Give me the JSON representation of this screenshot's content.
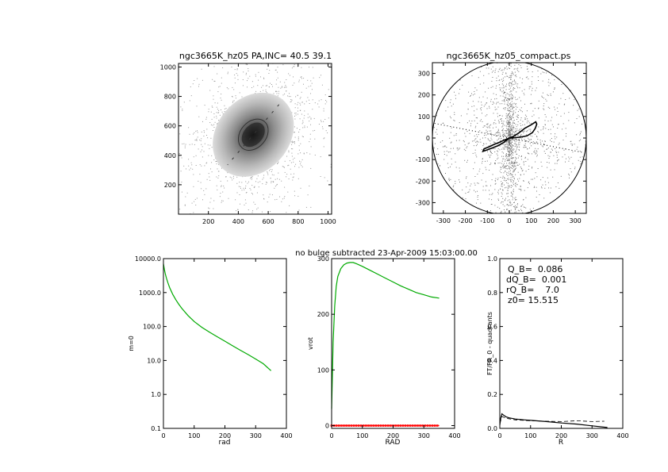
{
  "suptitle": "no bulge subtracted   23-Apr-2009 15:03:00.00",
  "chart_data": [
    {
      "id": "p1",
      "type": "image",
      "title": "ngc3665K_hz05 PA,INC= 40.5 39.1",
      "xlim": [
        0,
        1024
      ],
      "ylim": [
        0,
        1024
      ],
      "xticks": [
        200,
        400,
        600,
        800,
        1000
      ],
      "yticks": [
        200,
        400,
        600,
        800,
        1000
      ],
      "xticklabels": [
        "200",
        "400",
        "600",
        "800",
        "1000"
      ],
      "yticklabels": [
        "200",
        "400",
        "600",
        "800",
        "1000"
      ],
      "center": [
        500,
        540
      ],
      "ellipse": {
        "a": 340,
        "b": 270,
        "pa_deg": 40.5
      }
    },
    {
      "id": "p2",
      "type": "scatter",
      "title": "ngc3665K_hz05_compact.ps",
      "xlim": [
        -350,
        350
      ],
      "ylim": [
        -350,
        350
      ],
      "xticks": [
        -300,
        -200,
        -100,
        0,
        100,
        200,
        300
      ],
      "yticks": [
        -300,
        -200,
        -100,
        0,
        100,
        200,
        300
      ],
      "xticklabels": [
        "-300",
        "-200",
        "-100",
        "0",
        "100",
        "200",
        "300"
      ],
      "yticklabels": [
        "-300",
        "-200",
        "-100",
        "0",
        "100",
        "200",
        "300"
      ],
      "circle_radius": 350,
      "lobe": [
        [
          0,
          0
        ],
        [
          20,
          8
        ],
        [
          45,
          25
        ],
        [
          70,
          45
        ],
        [
          100,
          62
        ],
        [
          120,
          75
        ],
        [
          125,
          65
        ],
        [
          118,
          45
        ],
        [
          105,
          25
        ],
        [
          80,
          10
        ],
        [
          55,
          5
        ],
        [
          30,
          2
        ],
        [
          0,
          0
        ],
        [
          -20,
          -8
        ],
        [
          -45,
          -20
        ],
        [
          -70,
          -30
        ],
        [
          -95,
          -42
        ],
        [
          -115,
          -50
        ],
        [
          -120,
          -62
        ],
        [
          -100,
          -55
        ],
        [
          -75,
          -45
        ],
        [
          -50,
          -35
        ],
        [
          -25,
          -20
        ],
        [
          0,
          0
        ]
      ]
    },
    {
      "id": "p3",
      "type": "line",
      "ylog": true,
      "xlabel": "rad",
      "ylabel": "m=0",
      "xlim": [
        0,
        400
      ],
      "ylim": [
        0.1,
        10000
      ],
      "xticks": [
        0,
        100,
        200,
        300,
        400
      ],
      "yticks": [
        0.1,
        1,
        10,
        100,
        1000,
        10000
      ],
      "xticklabels": [
        "0",
        "100",
        "200",
        "300",
        "400"
      ],
      "yticklabels": [
        "0.1",
        "1.0",
        "10.0",
        "100.0",
        "1000.0",
        "10000.0"
      ],
      "series": [
        {
          "color": "#00aa00",
          "x": [
            0,
            3,
            6,
            10,
            15,
            20,
            30,
            40,
            50,
            60,
            80,
            100,
            125,
            150,
            175,
            200,
            225,
            250,
            275,
            300,
            325,
            350
          ],
          "y": [
            7000,
            4800,
            3600,
            2600,
            1900,
            1400,
            900,
            620,
            450,
            340,
            210,
            140,
            95,
            68,
            50,
            37,
            27,
            20,
            15,
            11,
            8,
            5
          ]
        }
      ]
    },
    {
      "id": "p4",
      "type": "line",
      "xlabel": "RAD",
      "ylabel": "vrot",
      "xlim": [
        0,
        400
      ],
      "ylim": [
        -5,
        300
      ],
      "xticks": [
        0,
        100,
        200,
        300,
        400
      ],
      "yticks": [
        0,
        100,
        200,
        300
      ],
      "xticklabels": [
        "0",
        "100",
        "200",
        "300",
        "400"
      ],
      "yticklabels": [
        "0",
        "100",
        "200",
        "300"
      ],
      "series": [
        {
          "color": "#00aa00",
          "x": [
            0,
            2,
            5,
            10,
            15,
            20,
            30,
            40,
            50,
            60,
            70,
            80,
            100,
            125,
            150,
            175,
            200,
            225,
            250,
            275,
            300,
            325,
            350
          ],
          "y": [
            30,
            80,
            150,
            215,
            250,
            268,
            282,
            289,
            292,
            293,
            293,
            291,
            286,
            279,
            272,
            265,
            258,
            251,
            245,
            239,
            235,
            231,
            229
          ]
        },
        {
          "color": "#ff0000",
          "x": [
            0,
            350
          ],
          "y": [
            0,
            0
          ]
        }
      ]
    },
    {
      "id": "p5",
      "type": "line",
      "xlabel": "R",
      "ylabel": "FT/FR_0 - quadrants",
      "xlim": [
        0,
        400
      ],
      "ylim": [
        0,
        1
      ],
      "xticks": [
        0,
        100,
        200,
        300,
        400
      ],
      "yticks": [
        0,
        0.2,
        0.4,
        0.6,
        0.8,
        1.0
      ],
      "xticklabels": [
        "0",
        "100",
        "200",
        "300",
        "400"
      ],
      "yticklabels": [
        "0.0",
        "0.2",
        "0.4",
        "0.6",
        "0.8",
        "1.0"
      ],
      "annotations": [
        "Q_B=  0.086",
        "dQ_B=  0.001",
        "rQ_B=    7.0",
        "z0= 15.515"
      ],
      "series": [
        {
          "color": "#000000",
          "x": [
            0,
            3,
            7,
            12,
            20,
            30,
            50,
            80,
            100,
            150,
            200,
            250,
            300,
            350
          ],
          "y": [
            0.02,
            0.06,
            0.086,
            0.078,
            0.068,
            0.062,
            0.055,
            0.05,
            0.047,
            0.04,
            0.032,
            0.025,
            0.015,
            0.005
          ]
        },
        {
          "color": "#000000",
          "dash": true,
          "x": [
            0,
            7,
            20,
            50,
            100,
            150,
            200,
            250,
            300,
            340
          ],
          "y": [
            0.03,
            0.07,
            0.06,
            0.05,
            0.045,
            0.042,
            0.04,
            0.045,
            0.04,
            0.042
          ]
        }
      ]
    }
  ]
}
